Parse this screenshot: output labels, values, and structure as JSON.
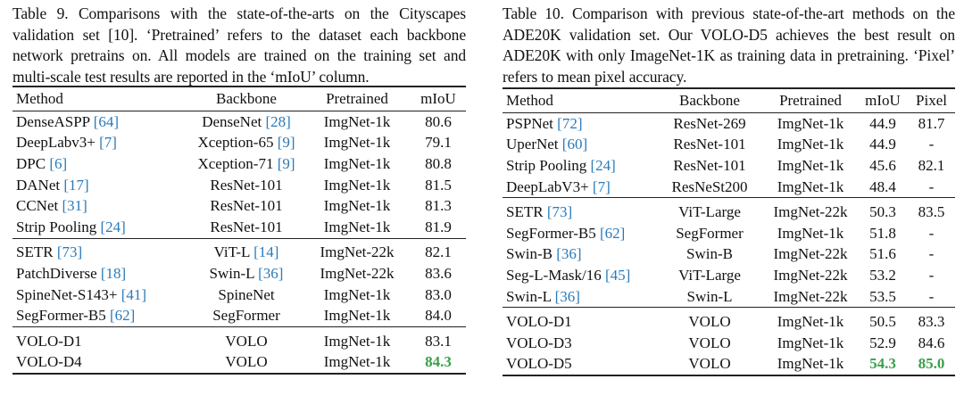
{
  "left": {
    "caption": "Table 9. Comparisons with the state-of-the-arts on the Cityscapes validation set [10]. ‘Pretrained’ refers to the dataset each backbone network pretrains on. All models are trained on the training set and multi-scale test results are reported in the ‘mIoU’ column.",
    "headers": [
      "Method",
      "Backbone",
      "Pretrained",
      "mIoU"
    ],
    "groups": [
      [
        {
          "method": "DenseASPP",
          "mref": "[64]",
          "backbone": "DenseNet",
          "bref": "[28]",
          "pretrained": "ImgNet-1k",
          "miou": "80.6"
        },
        {
          "method": "DeepLabv3+",
          "mref": "[7]",
          "backbone": "Xception-65",
          "bref": "[9]",
          "pretrained": "ImgNet-1k",
          "miou": "79.1"
        },
        {
          "method": "DPC",
          "mref": "[6]",
          "backbone": "Xception-71",
          "bref": "[9]",
          "pretrained": "ImgNet-1k",
          "miou": "80.8"
        },
        {
          "method": "DANet",
          "mref": "[17]",
          "backbone": "ResNet-101",
          "bref": "",
          "pretrained": "ImgNet-1k",
          "miou": "81.5"
        },
        {
          "method": "CCNet",
          "mref": "[31]",
          "backbone": "ResNet-101",
          "bref": "",
          "pretrained": "ImgNet-1k",
          "miou": "81.3"
        },
        {
          "method": "Strip Pooling",
          "mref": "[24]",
          "backbone": "ResNet-101",
          "bref": "",
          "pretrained": "ImgNet-1k",
          "miou": "81.9"
        }
      ],
      [
        {
          "method": "SETR",
          "mref": "[73]",
          "backbone": "ViT-L",
          "bref": "[14]",
          "pretrained": "ImgNet-22k",
          "miou": "82.1"
        },
        {
          "method": "PatchDiverse",
          "mref": "[18]",
          "backbone": "Swin-L",
          "bref": "[36]",
          "pretrained": "ImgNet-22k",
          "miou": "83.6"
        },
        {
          "method": "SpineNet-S143+",
          "mref": "[41]",
          "backbone": "SpineNet",
          "bref": "",
          "pretrained": "ImgNet-1k",
          "miou": "83.0"
        },
        {
          "method": "SegFormer-B5",
          "mref": "[62]",
          "backbone": "SegFormer",
          "bref": "",
          "pretrained": "ImgNet-1k",
          "miou": "84.0"
        }
      ],
      [
        {
          "method": "VOLO-D1",
          "mref": "",
          "backbone": "VOLO",
          "bref": "",
          "pretrained": "ImgNet-1k",
          "miou": "83.1"
        },
        {
          "method": "VOLO-D4",
          "mref": "",
          "backbone": "VOLO",
          "bref": "",
          "pretrained": "ImgNet-1k",
          "miou": "84.3",
          "best_miou": true
        }
      ]
    ]
  },
  "right": {
    "caption": "Table 10. Comparison with previous state-of-the-art methods on the ADE20K validation set. Our VOLO-D5 achieves the best result on ADE20K with only ImageNet-1K as training data in pretraining. ‘Pixel’ refers to mean pixel accuracy.",
    "headers": [
      "Method",
      "Backbone",
      "Pretrained",
      "mIoU",
      "Pixel"
    ],
    "groups": [
      [
        {
          "method": "PSPNet",
          "mref": "[72]",
          "backbone": "ResNet-269",
          "pretrained": "ImgNet-1k",
          "miou": "44.9",
          "pixel": "81.7"
        },
        {
          "method": "UperNet",
          "mref": "[60]",
          "backbone": "ResNet-101",
          "pretrained": "ImgNet-1k",
          "miou": "44.9",
          "pixel": "-"
        },
        {
          "method": "Strip Pooling",
          "mref": "[24]",
          "backbone": "ResNet-101",
          "pretrained": "ImgNet-1k",
          "miou": "45.6",
          "pixel": "82.1"
        },
        {
          "method": "DeepLabV3+",
          "mref": "[7]",
          "backbone": "ResNeSt200",
          "pretrained": "ImgNet-1k",
          "miou": "48.4",
          "pixel": "-"
        }
      ],
      [
        {
          "method": "SETR",
          "mref": "[73]",
          "backbone": "ViT-Large",
          "pretrained": "ImgNet-22k",
          "miou": "50.3",
          "pixel": "83.5"
        },
        {
          "method": "SegFormer-B5",
          "mref": "[62]",
          "backbone": "SegFormer",
          "pretrained": "ImgNet-1k",
          "miou": "51.8",
          "pixel": "-"
        },
        {
          "method": "Swin-B",
          "mref": "[36]",
          "backbone": "Swin-B",
          "pretrained": "ImgNet-22k",
          "miou": "51.6",
          "pixel": "-"
        },
        {
          "method": "Seg-L-Mask/16",
          "mref": "[45]",
          "backbone": "ViT-Large",
          "pretrained": "ImgNet-22k",
          "miou": "53.2",
          "pixel": "-"
        },
        {
          "method": "Swin-L",
          "mref": "[36]",
          "backbone": "Swin-L",
          "pretrained": "ImgNet-22k",
          "miou": "53.5",
          "pixel": "-"
        }
      ],
      [
        {
          "method": "VOLO-D1",
          "mref": "",
          "backbone": "VOLO",
          "pretrained": "ImgNet-1k",
          "miou": "50.5",
          "pixel": "83.3"
        },
        {
          "method": "VOLO-D3",
          "mref": "",
          "backbone": "VOLO",
          "pretrained": "ImgNet-1k",
          "miou": "52.9",
          "pixel": "84.6"
        },
        {
          "method": "VOLO-D5",
          "mref": "",
          "backbone": "VOLO",
          "pretrained": "ImgNet-1k",
          "miou": "54.3",
          "pixel": "85.0",
          "best_miou": true,
          "best_pixel": true
        }
      ]
    ]
  },
  "colors": {
    "citation": "#2a7ab9",
    "best": "#3aa04a",
    "rule": "#222222"
  }
}
